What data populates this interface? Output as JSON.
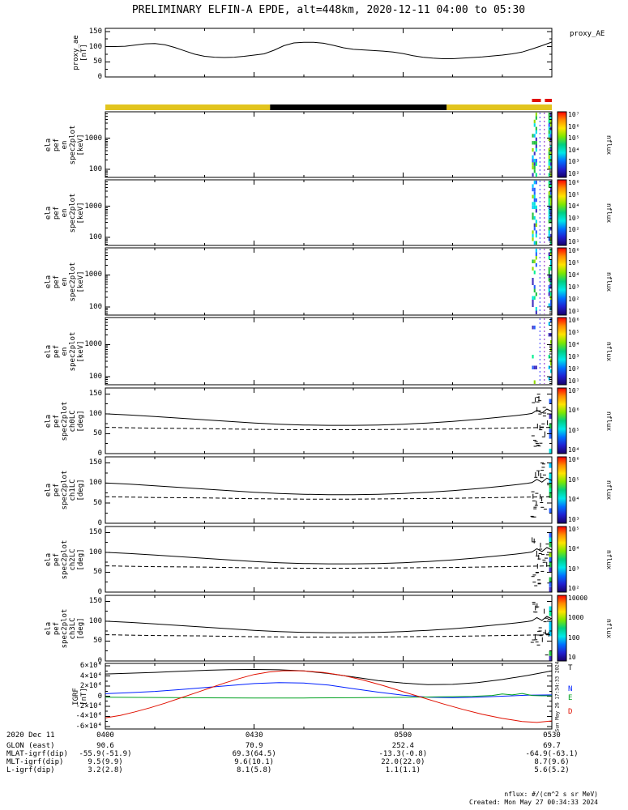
{
  "title": "PRELIMINARY ELFIN-A EPDE, alt=448km, 2020-12-11 04:00 to 05:30",
  "footer": {
    "units_note": "nflux: #/(cm^2 s sr MeV)",
    "created": "Created: Mon May 27 00:34:33 2024",
    "side_timestamp": "Sun May 26 17:34:33 2024"
  },
  "colors": {
    "axis": "#000000",
    "day_bar": "#e2c41e",
    "night_bar": "#000000",
    "marker_red": "#e01000",
    "rainbow": [
      "#ff0000",
      "#ff8c00",
      "#ffe400",
      "#7fe800",
      "#00d080",
      "#00e8e8",
      "#0070ff",
      "#2020d0",
      "#18006a"
    ],
    "noise_palette": [
      "#00e0e0",
      "#00c8ff",
      "#2860ff",
      "#20c040",
      "#90dc00",
      "#4030c0",
      "#00f090"
    ]
  },
  "position_bar": {
    "segments": [
      {
        "t0": 0,
        "t1": 33.2,
        "color_key": "day_bar"
      },
      {
        "t0": 33.2,
        "t1": 68.8,
        "color_key": "night_bar"
      },
      {
        "t0": 68.8,
        "t1": 90,
        "color_key": "day_bar"
      }
    ],
    "red_marks": [
      [
        86.0,
        87.8
      ],
      [
        88.6,
        90.0
      ]
    ]
  },
  "bottom_rows": [
    {
      "label": "2020 Dec 11",
      "values": [
        "0400",
        "0430",
        "0500",
        "0530"
      ]
    },
    {
      "label": "GLON (east)",
      "values": [
        "90.6",
        "70.9",
        "252.4",
        "69.7"
      ]
    },
    {
      "label": "MLAT-igrf(dip)",
      "values": [
        "-55.9(-51.9)",
        "69.3(64.5)",
        "-13.3(-0.8)",
        "-64.9(-63.1)"
      ]
    },
    {
      "label": "MLT-igrf(dip)",
      "values": [
        "9.5(9.9)",
        "9.6(10.1)",
        "22.0(22.0)",
        "8.7(9.6)"
      ]
    },
    {
      "label": "L-igrf(dip)",
      "values": [
        "3.2(2.8)",
        "8.1(5.8)",
        "1.1(1.1)",
        "5.6(5.2)"
      ]
    }
  ],
  "chart_data": {
    "type": "multi-panel time series and spectrograms",
    "time": {
      "start": "2020-12-11 04:00",
      "end": "2020-12-11 05:30",
      "tick_minutes": [
        0,
        30,
        60,
        90
      ],
      "tick_labels": [
        "0400",
        "0430",
        "0500",
        "0530"
      ]
    },
    "loss_cone": {
      "solid": {
        "t": [
          0,
          5,
          10,
          15,
          20,
          25,
          30,
          35,
          40,
          45,
          50,
          55,
          60,
          65,
          70,
          75,
          80,
          83,
          85,
          86,
          87,
          88,
          89,
          90
        ],
        "v": [
          100,
          97,
          93,
          89,
          85,
          81,
          77,
          74,
          72,
          71,
          71,
          72,
          74,
          77,
          81,
          86,
          92,
          96,
          99,
          101,
          109,
          102,
          112,
          106
        ]
      },
      "dashed": {
        "t": [
          0,
          10,
          20,
          30,
          40,
          45,
          50,
          60,
          70,
          80,
          90
        ],
        "v": [
          66,
          64,
          63,
          61,
          60,
          60,
          60,
          61,
          62,
          64,
          66
        ]
      }
    },
    "panels": [
      {
        "id": "proxy",
        "kind": "line",
        "ylabel": "proxy_ae\n[nT]",
        "right_label": "proxy_AE",
        "ylim": [
          0,
          160
        ],
        "yticks": [
          {
            "v": 0,
            "label": "0"
          },
          {
            "v": 50,
            "label": "50"
          },
          {
            "v": 100,
            "label": "100"
          },
          {
            "v": 150,
            "label": "150"
          }
        ],
        "series": [
          {
            "name": "proxy_AE",
            "color": "#000000",
            "t": [
              0,
              2,
              4,
              6,
              8,
              10,
              12,
              14,
              16,
              18,
              20,
              22,
              24,
              26,
              28,
              30,
              32,
              34,
              36,
              38,
              40,
              42,
              44,
              46,
              48,
              50,
              52,
              54,
              56,
              58,
              60,
              62,
              64,
              66,
              68,
              70,
              72,
              74,
              76,
              78,
              80,
              82,
              84,
              86,
              88,
              90
            ],
            "v": [
              100,
              100,
              101,
              105,
              109,
              110,
              106,
              97,
              86,
              75,
              68,
              65,
              64,
              65,
              68,
              72,
              76,
              88,
              103,
              112,
              114,
              114,
              111,
              104,
              96,
              91,
              89,
              87,
              85,
              82,
              77,
              70,
              65,
              62,
              60,
              60,
              62,
              64,
              66,
              69,
              72,
              76,
              82,
              92,
              103,
              115
            ]
          }
        ]
      },
      {
        "id": "spec0",
        "kind": "spectrogram",
        "ylabel": "ela\npef\nen\nspec2plot\n[keV]",
        "yscale": "log",
        "ylim": [
          55,
          7000
        ],
        "yticks": [
          {
            "v": 100,
            "label": "100"
          },
          {
            "v": 1000,
            "label": "1000"
          }
        ],
        "colorbar": {
          "labels": [
            "10⁷",
            "10⁶",
            "10⁵",
            "10⁴",
            "10³",
            "10²"
          ],
          "unit": "nflux"
        },
        "noise_seed": 11,
        "noise_density": 0.5
      },
      {
        "id": "spec1",
        "kind": "spectrogram",
        "ylabel": "ela\npef\nen\nspec2plot\n[keV]",
        "yscale": "log",
        "ylim": [
          55,
          7000
        ],
        "yticks": [
          {
            "v": 100,
            "label": "100"
          },
          {
            "v": 1000,
            "label": "1000"
          }
        ],
        "colorbar": {
          "labels": [
            "10⁶",
            "10⁵",
            "10⁴",
            "10³",
            "10²",
            "10¹"
          ],
          "unit": "nflux"
        },
        "noise_seed": 22,
        "noise_density": 0.45
      },
      {
        "id": "spec2",
        "kind": "spectrogram",
        "ylabel": "ela\npef\nen\nspec2plot\n[keV]",
        "yscale": "log",
        "ylim": [
          55,
          7000
        ],
        "yticks": [
          {
            "v": 100,
            "label": "100"
          },
          {
            "v": 1000,
            "label": "1000"
          }
        ],
        "colorbar": {
          "labels": [
            "10⁶",
            "10⁵",
            "10⁴",
            "10³",
            "10²",
            "10¹"
          ],
          "unit": "nflux"
        },
        "noise_seed": 33,
        "noise_density": 0.45
      },
      {
        "id": "spec3",
        "kind": "spectrogram",
        "ylabel": "ela\npef\nen\nspec2plot\n[keV]",
        "yscale": "log",
        "ylim": [
          55,
          7000
        ],
        "yticks": [
          {
            "v": 100,
            "label": "100"
          },
          {
            "v": 1000,
            "label": "1000"
          }
        ],
        "colorbar": {
          "labels": [
            "10⁶",
            "10⁵",
            "10⁴",
            "10³",
            "10²",
            "10¹"
          ],
          "unit": "nflux"
        },
        "noise_seed": 44,
        "noise_density": 0.12
      },
      {
        "id": "ch0",
        "kind": "pitch",
        "ylabel": "ela\npef\nspec2plot\nch0LC\n[deg]",
        "ylim": [
          0,
          165
        ],
        "yticks": [
          {
            "v": 0,
            "label": "0"
          },
          {
            "v": 50,
            "label": "50"
          },
          {
            "v": 100,
            "label": "100"
          },
          {
            "v": 150,
            "label": "150"
          }
        ],
        "colorbar": {
          "labels": [
            "10⁷",
            "10⁶",
            "10⁵",
            "10⁴"
          ],
          "unit": "nflux"
        },
        "noise_seed": 55
      },
      {
        "id": "ch1",
        "kind": "pitch",
        "ylabel": "ela\npef\nspec2plot\nch1LC\n[deg]",
        "ylim": [
          0,
          165
        ],
        "yticks": [
          {
            "v": 0,
            "label": "0"
          },
          {
            "v": 50,
            "label": "50"
          },
          {
            "v": 100,
            "label": "100"
          },
          {
            "v": 150,
            "label": "150"
          }
        ],
        "colorbar": {
          "labels": [
            "10⁶",
            "10⁵",
            "10⁴",
            "10³"
          ],
          "unit": "nflux"
        },
        "noise_seed": 66
      },
      {
        "id": "ch2",
        "kind": "pitch",
        "ylabel": "ela\npef\nspec2plot\nch2LC\n[deg]",
        "ylim": [
          0,
          165
        ],
        "yticks": [
          {
            "v": 0,
            "label": "0"
          },
          {
            "v": 50,
            "label": "50"
          },
          {
            "v": 100,
            "label": "100"
          },
          {
            "v": 150,
            "label": "150"
          }
        ],
        "colorbar": {
          "labels": [
            "10⁵",
            "10⁴",
            "10³",
            "10²"
          ],
          "unit": "nflux"
        },
        "noise_seed": 77
      },
      {
        "id": "ch3",
        "kind": "pitch",
        "ylabel": "ela\npef\nspec2plot\nch3LC\n[deg]",
        "ylim": [
          0,
          165
        ],
        "yticks": [
          {
            "v": 0,
            "label": "0"
          },
          {
            "v": 50,
            "label": "50"
          },
          {
            "v": 100,
            "label": "100"
          },
          {
            "v": 150,
            "label": "150"
          }
        ],
        "colorbar": {
          "labels": [
            "10000",
            "1000",
            "100",
            "10"
          ],
          "unit": "nflux"
        },
        "noise_seed": 88
      },
      {
        "id": "igrf",
        "kind": "multiline",
        "ylabel": "IGRF\n[nT]",
        "ylim": [
          -65000,
          65000
        ],
        "yticks": [
          {
            "v": 60000,
            "label": "6×10⁴"
          },
          {
            "v": 40000,
            "label": "4×10⁴"
          },
          {
            "v": 20000,
            "label": "2×10⁴"
          },
          {
            "v": 0,
            "label": "0"
          },
          {
            "v": -20000,
            "label": "-2×10⁴"
          },
          {
            "v": -40000,
            "label": "-4×10⁴"
          },
          {
            "v": -60000,
            "label": "-6×10⁴"
          }
        ],
        "series": [
          {
            "name": "T",
            "color": "#000000",
            "t": [
              0,
              5,
              10,
              15,
              20,
              25,
              30,
              35,
              40,
              45,
              50,
              55,
              60,
              65,
              70,
              75,
              80,
              85,
              90
            ],
            "v": [
              44000,
              45500,
              47200,
              49200,
              51200,
              52600,
              53000,
              52400,
              50000,
              45000,
              38000,
              31000,
              26000,
              23000,
              23500,
              27000,
              33000,
              41000,
              50000
            ]
          },
          {
            "name": "N",
            "color": "#0020ff",
            "t": [
              0,
              5,
              10,
              15,
              20,
              25,
              30,
              35,
              40,
              45,
              50,
              55,
              60,
              65,
              70,
              75,
              80,
              85,
              90
            ],
            "v": [
              5000,
              7000,
              9500,
              13000,
              17000,
              21000,
              25000,
              27000,
              26000,
              22000,
              15000,
              8000,
              2000,
              -2000,
              -3000,
              -2000,
              0,
              2000,
              2500
            ]
          },
          {
            "name": "E",
            "color": "#00a020",
            "t": [
              0,
              10,
              20,
              30,
              40,
              50,
              60,
              68,
              74,
              78,
              80,
              82,
              84,
              86,
              88,
              90
            ],
            "v": [
              -2000,
              -2600,
              -3200,
              -3600,
              -3600,
              -3000,
              -2200,
              -1200,
              -400,
              1500,
              4500,
              2500,
              5500,
              1500,
              800,
              800
            ]
          },
          {
            "name": "D",
            "color": "#e01000",
            "t": [
              0,
              3,
              6,
              9,
              12,
              15,
              18,
              21,
              24,
              27,
              30,
              33,
              36,
              40,
              44,
              48,
              52,
              56,
              60,
              64,
              68,
              72,
              76,
              80,
              84,
              87,
              90
            ],
            "v": [
              -43000,
              -38000,
              -31000,
              -23000,
              -14000,
              -4000,
              6000,
              16000,
              26000,
              35000,
              43000,
              48000,
              50500,
              50000,
              47000,
              41000,
              32000,
              21000,
              9000,
              -3000,
              -15000,
              -26000,
              -36000,
              -44000,
              -50000,
              -52000,
              -49000
            ]
          }
        ]
      }
    ]
  }
}
